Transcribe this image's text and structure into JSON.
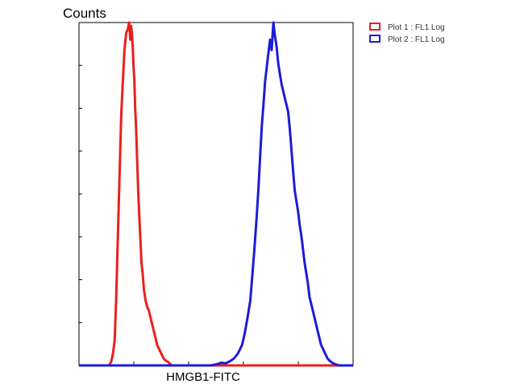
{
  "chart_data": {
    "type": "line",
    "ylabel": "Counts",
    "xlabel": "HMGB1-FITC",
    "xscale": "log",
    "grid": false,
    "legend_position": "top-right",
    "xlim": [
      0,
      1
    ],
    "ylim": [
      0,
      1
    ],
    "series": [
      {
        "name": "Plot 1 : FL1 Log",
        "color": "#e8201c",
        "x": [
          0.0,
          0.077,
          0.11,
          0.117,
          0.123,
          0.13,
          0.136,
          0.145,
          0.154,
          0.16,
          0.166,
          0.172,
          0.178,
          0.183,
          0.187,
          0.19,
          0.193,
          0.196,
          0.199,
          0.202,
          0.205,
          0.208,
          0.21,
          0.213,
          0.216,
          0.219,
          0.222,
          0.225,
          0.228,
          0.232,
          0.237,
          0.243,
          0.249,
          0.255,
          0.261,
          0.267,
          0.273,
          0.279,
          0.285,
          0.291,
          0.297,
          0.303,
          0.309,
          0.315,
          0.325,
          0.338,
          0.5,
          0.7,
          1.0
        ],
        "y": [
          0.0,
          0.0,
          0.0,
          0.01,
          0.03,
          0.07,
          0.2,
          0.47,
          0.73,
          0.83,
          0.92,
          0.97,
          0.98,
          1.0,
          0.95,
          0.99,
          0.97,
          0.93,
          0.87,
          0.83,
          0.75,
          0.7,
          0.65,
          0.58,
          0.51,
          0.45,
          0.4,
          0.35,
          0.3,
          0.27,
          0.22,
          0.19,
          0.17,
          0.16,
          0.14,
          0.12,
          0.1,
          0.08,
          0.06,
          0.05,
          0.04,
          0.03,
          0.02,
          0.015,
          0.01,
          0.0,
          0.0,
          0.0,
          0.0
        ]
      },
      {
        "name": "Plot 2 : FL1 Log",
        "color": "#1c1cd8",
        "x": [
          0.0,
          0.3,
          0.48,
          0.505,
          0.52,
          0.535,
          0.55,
          0.565,
          0.58,
          0.595,
          0.605,
          0.615,
          0.625,
          0.632,
          0.64,
          0.648,
          0.655,
          0.661,
          0.667,
          0.673,
          0.679,
          0.685,
          0.691,
          0.697,
          0.703,
          0.709,
          0.715,
          0.721,
          0.727,
          0.733,
          0.739,
          0.745,
          0.751,
          0.757,
          0.763,
          0.769,
          0.775,
          0.781,
          0.787,
          0.793,
          0.799,
          0.805,
          0.811,
          0.817,
          0.823,
          0.829,
          0.835,
          0.841,
          0.847,
          0.853,
          0.859,
          0.865,
          0.871,
          0.877,
          0.883,
          0.889,
          0.895,
          0.901,
          0.907,
          0.913,
          0.92,
          0.93,
          0.95,
          1.0
        ],
        "y": [
          0.0,
          0.0,
          0.0,
          0.004,
          0.008,
          0.006,
          0.012,
          0.02,
          0.035,
          0.06,
          0.095,
          0.14,
          0.19,
          0.26,
          0.34,
          0.43,
          0.52,
          0.61,
          0.7,
          0.76,
          0.83,
          0.87,
          0.91,
          0.95,
          0.92,
          1.0,
          0.96,
          0.93,
          0.88,
          0.85,
          0.82,
          0.8,
          0.78,
          0.76,
          0.74,
          0.69,
          0.63,
          0.57,
          0.51,
          0.48,
          0.45,
          0.41,
          0.38,
          0.34,
          0.3,
          0.27,
          0.24,
          0.2,
          0.18,
          0.16,
          0.14,
          0.12,
          0.1,
          0.08,
          0.06,
          0.05,
          0.04,
          0.03,
          0.02,
          0.015,
          0.01,
          0.005,
          0.0,
          0.0
        ]
      }
    ]
  }
}
